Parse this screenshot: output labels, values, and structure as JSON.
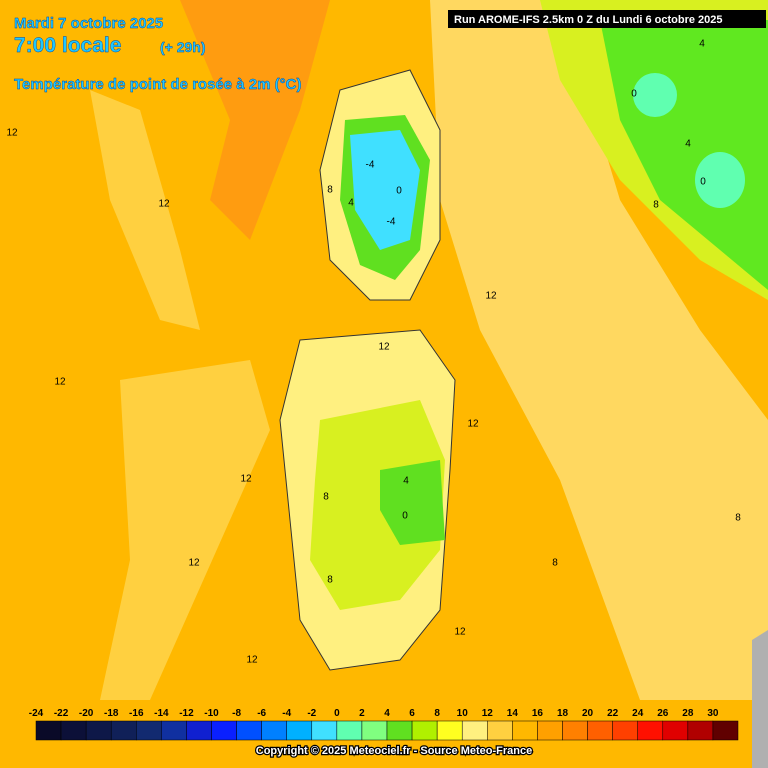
{
  "header": {
    "date": "Mardi 7 octobre 2025",
    "time": "7:00 locale",
    "lead": "(+ 29h)",
    "variable": "Température de point de rosée à 2m (°C)",
    "run": "Run AROME-IFS 2.5km 0 Z du Lundi 6 octobre 2025"
  },
  "contour_labels": [
    12,
    12,
    12,
    12,
    12,
    12,
    8,
    4,
    -4,
    0,
    -4,
    12,
    12,
    12,
    8,
    4,
    0,
    8,
    12,
    8,
    8,
    8,
    0,
    4,
    4,
    0
  ],
  "colorbar": {
    "levels": [
      -24,
      -22,
      -20,
      -18,
      -16,
      -14,
      -12,
      -10,
      -8,
      -6,
      -4,
      -2,
      0,
      2,
      4,
      6,
      8,
      10,
      12,
      14,
      16,
      18,
      20,
      22,
      24,
      26,
      28,
      30
    ],
    "colors": [
      "#0a0a28",
      "#0c1038",
      "#0e1848",
      "#102058",
      "#122a70",
      "#1030a0",
      "#1020d0",
      "#0a20ff",
      "#0050ff",
      "#0080ff",
      "#00b0ff",
      "#40e0ff",
      "#60ffb0",
      "#80ff80",
      "#60e020",
      "#b0f000",
      "#ffff20",
      "#fff080",
      "#ffd040",
      "#ffb800",
      "#ffa000",
      "#ff8000",
      "#ff6000",
      "#ff4000",
      "#ff1000",
      "#e00000",
      "#b00000",
      "#600000"
    ]
  },
  "footer": {
    "copyright": "Copyright © 2025 Meteociel.fr - Source Meteo-France"
  }
}
